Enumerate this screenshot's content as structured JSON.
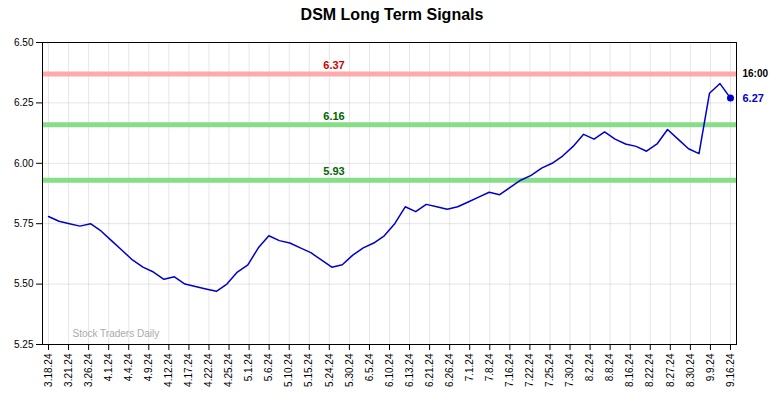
{
  "chart_data": {
    "type": "line",
    "title": "DSM Long Term Signals",
    "color": "#0000cc",
    "x": [
      0,
      0.5230769231,
      1.0461538462,
      1.5692307692,
      2.0923076923,
      2.6153846154,
      3.1384615385,
      3.6615384615,
      4.1846153846,
      4.7076923077,
      5.2307692308,
      5.7538461538,
      6.2769230769,
      6.8,
      7.3230769231,
      7.8461538462,
      8.3692307692,
      8.8923076923,
      9.4153846154,
      9.9384615385,
      10.4615384615,
      10.9846153846,
      11.5076923077,
      12.0307692308,
      12.5538461538,
      13.0769230769,
      13.6,
      14.1230769231,
      14.6461538462,
      15.1692307692,
      15.6923076923,
      16.2153846154,
      16.7384615385,
      17.2615384615,
      17.7846153846,
      18.3076923077,
      18.8307692308,
      19.3538461538,
      19.8769230769,
      20.4,
      20.9230769231,
      21.4461538462,
      21.9692307692,
      22.4923076923,
      23.0153846154,
      23.5384615385,
      24.0615384615,
      24.5846153846,
      25.1076923077,
      25.6307692308,
      26.1538461538,
      26.6769230769,
      27.2,
      27.7230769231,
      28.2461538462,
      28.7692307692,
      29.2923076923,
      29.8153846154,
      30.3384615385,
      30.8615384615,
      31.3846153846,
      31.9076923077,
      32.4307692308,
      32.9538461538,
      33.4769230769,
      34
    ],
    "values": [
      5.78,
      5.76,
      5.75,
      5.74,
      5.75,
      5.72,
      5.68,
      5.64,
      5.6,
      5.57,
      5.55,
      5.52,
      5.53,
      5.5,
      5.49,
      5.48,
      5.47,
      5.5,
      5.55,
      5.58,
      5.65,
      5.7,
      5.68,
      5.67,
      5.65,
      5.63,
      5.6,
      5.57,
      5.58,
      5.62,
      5.65,
      5.67,
      5.7,
      5.75,
      5.82,
      5.8,
      5.83,
      5.82,
      5.81,
      5.82,
      5.84,
      5.86,
      5.88,
      5.87,
      5.9,
      5.93,
      5.95,
      5.98,
      6.0,
      6.03,
      6.07,
      6.12,
      6.1,
      6.13,
      6.1,
      6.08,
      6.07,
      6.05,
      6.08,
      6.14,
      6.1,
      6.06,
      6.04,
      6.29,
      6.33,
      6.27
    ],
    "xlim": [
      -0.3,
      34.3
    ],
    "xticks": [
      {
        "value": 0,
        "label": "3.18.24"
      },
      {
        "value": 1,
        "label": "3.21.24"
      },
      {
        "value": 2,
        "label": "3.26.24"
      },
      {
        "value": 3,
        "label": "4.1.24"
      },
      {
        "value": 4,
        "label": "4.4.24"
      },
      {
        "value": 5,
        "label": "4.9.24"
      },
      {
        "value": 6,
        "label": "4.12.24"
      },
      {
        "value": 7,
        "label": "4.17.24"
      },
      {
        "value": 8,
        "label": "4.22.24"
      },
      {
        "value": 9,
        "label": "4.25.24"
      },
      {
        "value": 10,
        "label": "5.1.24"
      },
      {
        "value": 11,
        "label": "5.6.24"
      },
      {
        "value": 12,
        "label": "5.10.24"
      },
      {
        "value": 13,
        "label": "5.15.24"
      },
      {
        "value": 14,
        "label": "5.24.24"
      },
      {
        "value": 15,
        "label": "5.30.24"
      },
      {
        "value": 16,
        "label": "6.5.24"
      },
      {
        "value": 17,
        "label": "6.10.24"
      },
      {
        "value": 18,
        "label": "6.13.24"
      },
      {
        "value": 19,
        "label": "6.21.24"
      },
      {
        "value": 20,
        "label": "6.26.24"
      },
      {
        "value": 21,
        "label": "7.1.24"
      },
      {
        "value": 22,
        "label": "7.8.24"
      },
      {
        "value": 23,
        "label": "7.16.24"
      },
      {
        "value": 24,
        "label": "7.22.24"
      },
      {
        "value": 25,
        "label": "7.25.24"
      },
      {
        "value": 26,
        "label": "7.30.24"
      },
      {
        "value": 27,
        "label": "8.2.24"
      },
      {
        "value": 28,
        "label": "8.8.24"
      },
      {
        "value": 29,
        "label": "8.16.24"
      },
      {
        "value": 30,
        "label": "8.22.24"
      },
      {
        "value": 31,
        "label": "8.27.24"
      },
      {
        "value": 32,
        "label": "8.30.24"
      },
      {
        "value": 33,
        "label": "9.9.24"
      },
      {
        "value": 34,
        "label": "9.16.24"
      }
    ],
    "ylim": [
      5.25,
      6.5
    ],
    "yticks": [
      5.25,
      {
        "value": 5.5,
        "label": "5.50"
      },
      5.75,
      {
        "value": 6.0,
        "label": "6.00"
      },
      6.25,
      {
        "value": 6.5,
        "label": "6.50"
      }
    ],
    "grid": true,
    "reference_lines": [
      {
        "value": 6.37,
        "color": "#ffaaaa",
        "label_color": "#cc0000"
      },
      {
        "value": 6.16,
        "color": "#88dd88",
        "label_color": "#006600"
      },
      {
        "value": 5.93,
        "color": "#88dd88",
        "label_color": "#006600"
      }
    ],
    "end_value": 6.27,
    "end_label": {
      "text": "16:00",
      "y": 6.37
    },
    "watermark": {
      "text": "Stock Traders Daily",
      "color": "#aaaaaa"
    }
  }
}
